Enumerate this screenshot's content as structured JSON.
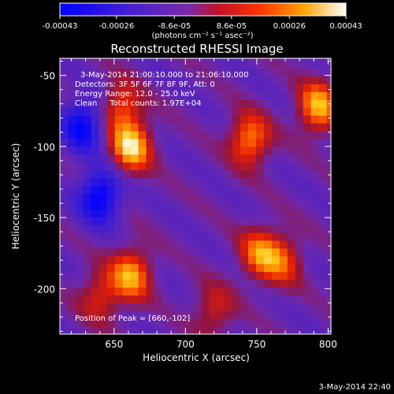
{
  "colorbar": {
    "ticks": [
      "-0.00043",
      "-0.00026",
      "-8.6e-05",
      "8.6e-05",
      "0.00026",
      "0.00043"
    ],
    "tick_values": [
      -0.00043,
      -0.00026,
      -8.6e-05,
      8.6e-05,
      0.00026,
      0.00043
    ],
    "range": [
      -0.00043,
      0.00043
    ],
    "unit_label": "(photons cm⁻² s⁻¹ asec⁻²)",
    "colormap": "blue-purple-red-orange-yellow-white"
  },
  "chart_data": {
    "type": "heatmap",
    "title": "Reconstructed RHESSI Image",
    "xlabel": "Heliocentric X (arcsec)",
    "ylabel": "Heliocentric Y (arcsec)",
    "xlim": [
      612,
      802
    ],
    "ylim": [
      -232,
      -38
    ],
    "x_ticks": [
      650,
      700,
      750,
      800
    ],
    "y_ticks": [
      -50,
      -100,
      -150,
      -200
    ],
    "annotations": [
      "3-May-2014 21:00:10.000 to 21:06:10.000",
      "Detectors: 3F 5F 6F 7F 8F 9F, Att: 0",
      "Energy Range: 12.0 - 25.0 keV",
      "Clean     Total counts: 1.97E+04",
      "Position of Peak = [660,-102]"
    ],
    "sources": [
      {
        "x": 662,
        "y": -100,
        "peak": 1.0
      },
      {
        "x": 655,
        "y": -72,
        "peak": 0.6
      },
      {
        "x": 662,
        "y": -190,
        "peak": 0.85
      },
      {
        "x": 640,
        "y": -205,
        "peak": 0.5
      },
      {
        "x": 745,
        "y": -95,
        "peak": 0.8
      },
      {
        "x": 752,
        "y": -175,
        "peak": 0.7
      },
      {
        "x": 720,
        "y": -215,
        "peak": 0.45
      },
      {
        "x": 793,
        "y": -72,
        "peak": 0.9
      },
      {
        "x": 768,
        "y": -180,
        "peak": 0.55
      },
      {
        "x": 640,
        "y": -135,
        "peak": -0.9
      },
      {
        "x": 628,
        "y": -85,
        "peak": -0.8
      }
    ]
  },
  "footer": {
    "timestamp": "3-May-2014 22:40"
  }
}
